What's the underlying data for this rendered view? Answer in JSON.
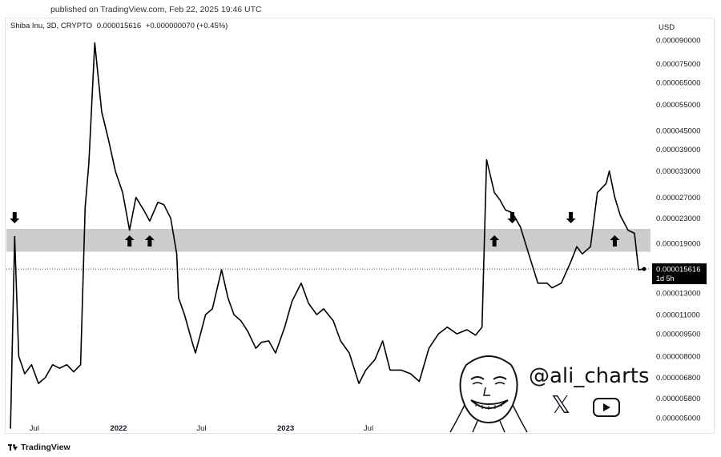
{
  "header": {
    "published": "published on TradingView.com, Feb 22, 2025 19:46 UTC"
  },
  "symbol": {
    "name": "Shiba Inu, 3D, CRYPTO",
    "price": "0.000015616",
    "change": "+0.000000070 (+0.45%)"
  },
  "axis": {
    "currency": "USD",
    "price_ticks": [
      "0.000090000",
      "0.000075000",
      "0.000065000",
      "0.000055000",
      "0.000045000",
      "0.000039000",
      "0.000033000",
      "0.000027000",
      "0.000023000",
      "0.000019000",
      "0.000013000",
      "0.000011000",
      "0.000009500",
      "0.000008000",
      "0.000006800",
      "0.000005800",
      "0.000005000"
    ],
    "time_ticks": [
      "Jul",
      "2022",
      "Jul",
      "2023",
      "Jul"
    ],
    "last_price_label": "0.000015616",
    "countdown_label": "1d 5h"
  },
  "watermark": {
    "handle": "@ali_charts",
    "x_icon": "x-logo-icon",
    "youtube_icon": "youtube-icon"
  },
  "footer": {
    "brand": "TradingView",
    "logo_icon": "tradingview-logo-icon"
  },
  "colors": {
    "line": "#000000",
    "zone": "#cccccc",
    "text": "#131722"
  },
  "chart_data": {
    "type": "line",
    "title": "Shiba Inu, 3D, CRYPTO",
    "scale": "log",
    "ylabel": "USD",
    "ylim": [
      4.7e-06,
      9.8e-05
    ],
    "support_resistance_zone": [
      1.78e-05,
      2.12e-05
    ],
    "x": [
      "2021-05-10",
      "2021-05-19",
      "2021-05-28",
      "2021-06-10",
      "2021-06-25",
      "2021-07-10",
      "2021-07-25",
      "2021-08-10",
      "2021-08-25",
      "2021-09-10",
      "2021-09-25",
      "2021-10-10",
      "2021-10-20",
      "2021-10-28",
      "2021-11-10",
      "2021-11-25",
      "2021-12-10",
      "2021-12-25",
      "2022-01-10",
      "2022-01-25",
      "2022-02-08",
      "2022-02-25",
      "2022-03-10",
      "2022-03-28",
      "2022-04-10",
      "2022-04-25",
      "2022-05-08",
      "2022-05-12",
      "2022-05-25",
      "2022-06-10",
      "2022-06-18",
      "2022-07-10",
      "2022-07-25",
      "2022-08-14",
      "2022-08-28",
      "2022-09-10",
      "2022-09-25",
      "2022-10-10",
      "2022-10-28",
      "2022-11-09",
      "2022-11-25",
      "2022-12-10",
      "2022-12-30",
      "2023-01-15",
      "2023-02-04",
      "2023-02-20",
      "2023-03-10",
      "2023-03-25",
      "2023-04-15",
      "2023-05-01",
      "2023-05-20",
      "2023-06-10",
      "2023-06-25",
      "2023-07-15",
      "2023-08-01",
      "2023-08-17",
      "2023-09-10",
      "2023-10-01",
      "2023-10-20",
      "2023-11-10",
      "2023-12-01",
      "2023-12-20",
      "2024-01-10",
      "2024-02-01",
      "2024-02-20",
      "2024-03-05",
      "2024-03-15",
      "2024-04-01",
      "2024-04-13",
      "2024-04-25",
      "2024-05-10",
      "2024-05-28",
      "2024-06-15",
      "2024-07-05",
      "2024-07-25",
      "2024-08-05",
      "2024-08-25",
      "2024-09-15",
      "2024-09-28",
      "2024-10-10",
      "2024-10-28",
      "2024-11-12",
      "2024-12-01",
      "2024-12-08",
      "2024-12-20",
      "2025-01-01",
      "2025-01-18",
      "2025-02-01",
      "2025-02-10",
      "2025-02-22"
    ],
    "y": [
      4.6e-06,
      2e-05,
      8e-06,
      7e-06,
      7.5e-06,
      6.5e-06,
      6.8e-06,
      7.5e-06,
      7.3e-06,
      7.5e-06,
      7.1e-06,
      7.5e-06,
      2.5e-05,
      3.5e-05,
      8.8e-05,
      5.2e-05,
      4.2e-05,
      3.3e-05,
      2.8e-05,
      2.1e-05,
      2.7e-05,
      2.45e-05,
      2.25e-05,
      2.6e-05,
      2.55e-05,
      2.3e-05,
      1.75e-05,
      1.25e-05,
      1.1e-05,
      9e-06,
      8.2e-06,
      1.1e-05,
      1.15e-05,
      1.55e-05,
      1.25e-05,
      1.1e-05,
      1.05e-05,
      9.7e-06,
      8.5e-06,
      8.9e-06,
      9e-06,
      8.2e-06,
      1e-05,
      1.22e-05,
      1.4e-05,
      1.2e-05,
      1.1e-05,
      1.15e-05,
      1.05e-05,
      9e-06,
      8.2e-06,
      6.5e-06,
      7.2e-06,
      7.8e-06,
      9e-06,
      7.2e-06,
      7.2e-06,
      7e-06,
      6.6e-06,
      8.5e-06,
      9.5e-06,
      1e-05,
      9.5e-06,
      9.8e-06,
      9.4e-06,
      1e-05,
      3.6e-05,
      2.8e-05,
      2.65e-05,
      2.45e-05,
      2.4e-05,
      2.15e-05,
      1.75e-05,
      1.4e-05,
      1.4e-05,
      1.35e-05,
      1.4e-05,
      1.65e-05,
      1.85e-05,
      1.75e-05,
      1.85e-05,
      2.8e-05,
      3e-05,
      3.3e-05,
      2.7e-05,
      2.35e-05,
      2.1e-05,
      2.05e-05,
      1.55e-05,
      1.56e-05
    ],
    "up_arrows": [
      "2022-01-25",
      "2022-03-10",
      "2024-04-01",
      "2024-12-20"
    ],
    "down_arrows": [
      "2021-05-19",
      "2024-05-10",
      "2024-09-15"
    ]
  }
}
